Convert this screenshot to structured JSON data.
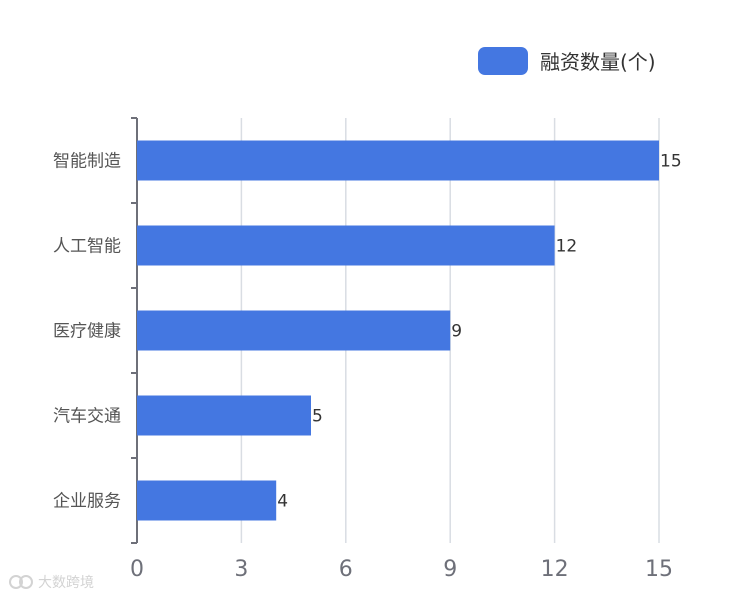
{
  "chart_data": {
    "type": "bar",
    "orientation": "horizontal",
    "categories": [
      "智能制造",
      "人工智能",
      "医疗健康",
      "汽车交通",
      "企业服务"
    ],
    "series": [
      {
        "name": "融资数量(个)",
        "values": [
          15,
          12,
          9,
          5,
          4
        ],
        "color": "#4477e1"
      }
    ],
    "x_ticks": [
      0,
      3,
      6,
      9,
      12,
      15
    ],
    "xlim": [
      0,
      15
    ],
    "grid": true,
    "legend_position": "top-right",
    "data_labels": true
  },
  "watermark": "大数跨境"
}
